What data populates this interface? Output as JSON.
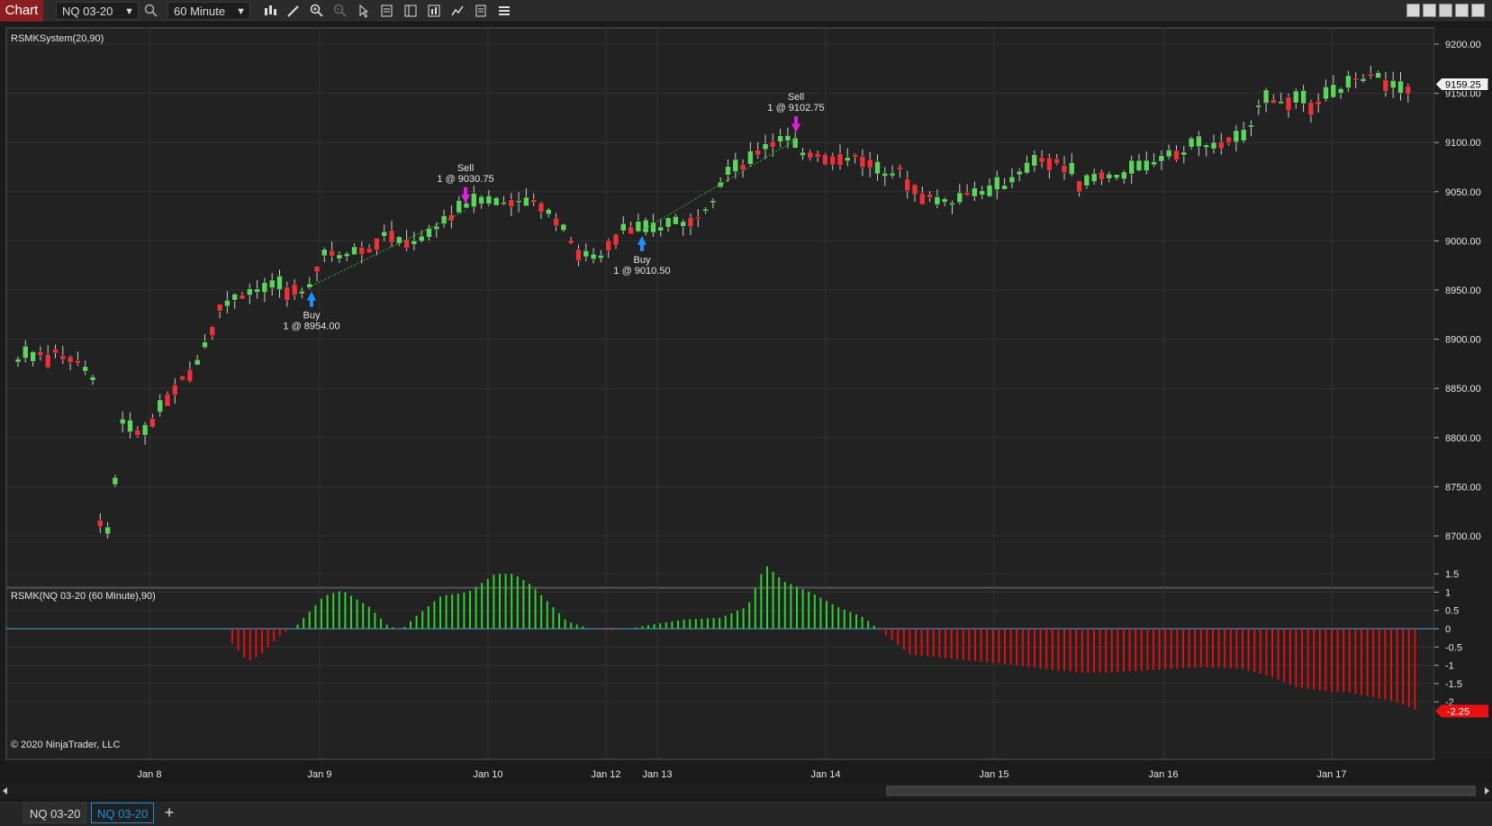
{
  "toolbar": {
    "chart_label": "Chart",
    "instrument": "NQ 03-20",
    "interval": "60 Minute",
    "icons": [
      "search-icon",
      "bars-type-icon",
      "drawing-tool-icon",
      "zoom-in-icon",
      "zoom-out-icon",
      "pointer-icon",
      "data-box-icon",
      "indicators-icon",
      "strategies-icon",
      "chart-trader-icon",
      "properties-icon",
      "list-icon"
    ]
  },
  "chart": {
    "price_panel_label": "RSMKSystem(20,90)",
    "indicator_panel_label": "RSMK(NQ 03-20 (60 Minute),90)",
    "copyright": "© 2020 NinjaTrader, LLC",
    "last_price": "9159.25",
    "last_indicator": "-2.25",
    "price_axis": [
      "9200.00",
      "9150.00",
      "9100.00",
      "9050.00",
      "9000.00",
      "8950.00",
      "8900.00",
      "8850.00",
      "8800.00",
      "8750.00",
      "8700.00"
    ],
    "indicator_axis": [
      "1.5",
      "1",
      "0.5",
      "0",
      "-0.5",
      "-1",
      "-1.5",
      "-2"
    ],
    "date_axis": [
      "Jan 8",
      "Jan 9",
      "Jan 10",
      "Jan 12",
      "Jan 13",
      "Jan 14",
      "Jan 15",
      "Jan 16",
      "Jan 17"
    ],
    "trades": [
      {
        "action": "Buy",
        "detail": "1 @ 8954.00"
      },
      {
        "action": "Sell",
        "detail": "1 @ 9030.75"
      },
      {
        "action": "Buy",
        "detail": "1 @ 9010.50"
      },
      {
        "action": "Sell",
        "detail": "1 @ 9102.75"
      }
    ],
    "colors": {
      "up": "#5fd35f",
      "down": "#e8323c",
      "buy": "#1e90ff",
      "sell": "#e020e0",
      "zero_line": "#4aa3d8",
      "hist_up": "#2fd02f",
      "hist_down": "#e01010"
    }
  },
  "tabs": [
    {
      "label": "NQ 03-20",
      "active": false
    },
    {
      "label": "NQ 03-20",
      "active": true
    }
  ],
  "add_tab": "+"
}
